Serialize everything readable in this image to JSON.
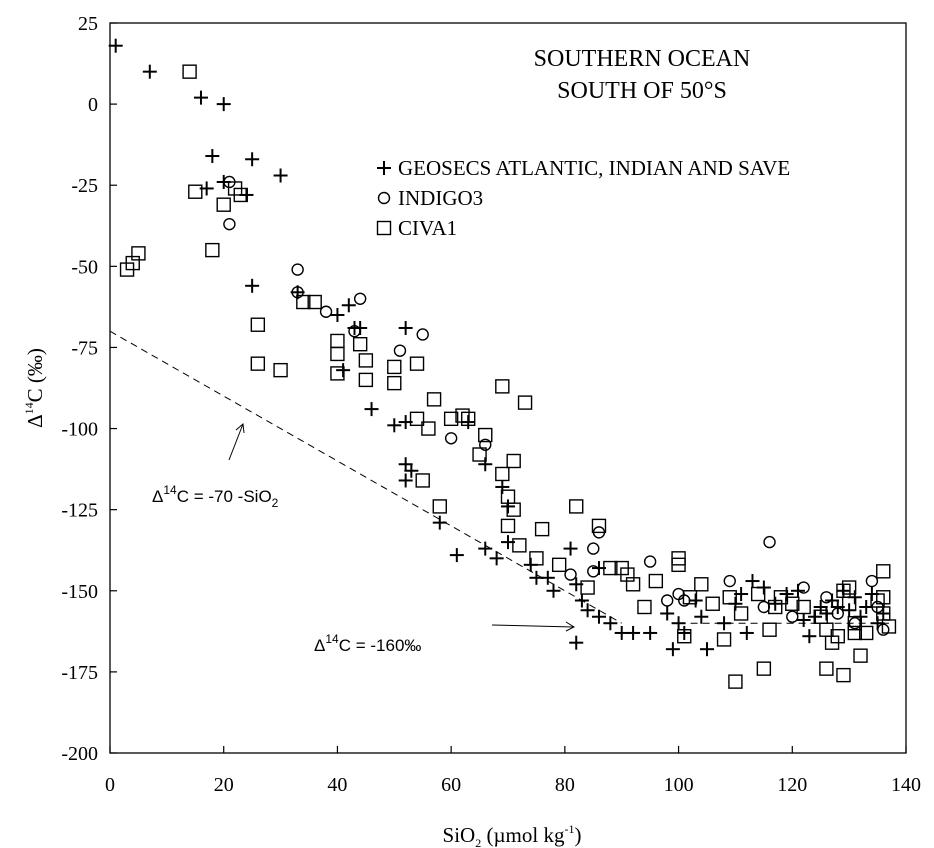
{
  "chart_data": {
    "type": "scatter",
    "title": [
      "SOUTHERN OCEAN",
      "SOUTH OF 50°S"
    ],
    "xlabel": {
      "main": "SiO",
      "sub": "2",
      "rest": " (µmol kg",
      "sup": "-1",
      "end": ")"
    },
    "ylabel": {
      "pre": "Δ",
      "sup": "14",
      "rest": "C (‰)"
    },
    "xlim": [
      0,
      140
    ],
    "ylim": [
      -200,
      25
    ],
    "xticks": [
      0,
      20,
      40,
      60,
      80,
      100,
      120,
      140
    ],
    "yticks": [
      25,
      0,
      -25,
      -50,
      -75,
      -100,
      -125,
      -150,
      -175,
      -200
    ],
    "legend_position": "top-right",
    "series": [
      {
        "name": "GEOSECS ATLANTIC, INDIAN AND SAVE",
        "marker": "plus",
        "points": [
          [
            1,
            18
          ],
          [
            7,
            10
          ],
          [
            16,
            2
          ],
          [
            20,
            0
          ],
          [
            18,
            -16
          ],
          [
            25,
            -17
          ],
          [
            17,
            -26
          ],
          [
            20,
            -24
          ],
          [
            24,
            -28
          ],
          [
            30,
            -22
          ],
          [
            25,
            -56
          ],
          [
            33,
            -58
          ],
          [
            40,
            -65
          ],
          [
            42,
            -62
          ],
          [
            44,
            -69
          ],
          [
            52,
            -69
          ],
          [
            43,
            -69
          ],
          [
            41,
            -82
          ],
          [
            46,
            -94
          ],
          [
            50,
            -99
          ],
          [
            52,
            -98
          ],
          [
            52,
            -111
          ],
          [
            53,
            -113
          ],
          [
            52,
            -116
          ],
          [
            58,
            -129
          ],
          [
            61,
            -139
          ],
          [
            63,
            -98
          ],
          [
            66,
            -111
          ],
          [
            69,
            -118
          ],
          [
            70,
            -124
          ],
          [
            70,
            -135
          ],
          [
            66,
            -137
          ],
          [
            68,
            -140
          ],
          [
            74,
            -142
          ],
          [
            75,
            -146
          ],
          [
            77,
            -146
          ],
          [
            78,
            -150
          ],
          [
            81,
            -137
          ],
          [
            82,
            -148
          ],
          [
            83,
            -153
          ],
          [
            84,
            -156
          ],
          [
            82,
            -166
          ],
          [
            86,
            -158
          ],
          [
            88,
            -160
          ],
          [
            86,
            -143
          ],
          [
            90,
            -163
          ],
          [
            92,
            -163
          ],
          [
            95,
            -163
          ],
          [
            98,
            -157
          ],
          [
            99,
            -168
          ],
          [
            100,
            -160
          ],
          [
            101,
            -163
          ],
          [
            103,
            -153
          ],
          [
            104,
            -158
          ],
          [
            105,
            -168
          ],
          [
            108,
            -160
          ],
          [
            110,
            -154
          ],
          [
            111,
            -151
          ],
          [
            112,
            -163
          ],
          [
            113,
            -147
          ],
          [
            115,
            -149
          ],
          [
            117,
            -154
          ],
          [
            119,
            -151
          ],
          [
            121,
            -150
          ],
          [
            122,
            -159
          ],
          [
            123,
            -164
          ],
          [
            124,
            -158
          ],
          [
            125,
            -155
          ],
          [
            126,
            -157
          ],
          [
            127,
            -153
          ],
          [
            128,
            -155
          ],
          [
            129,
            -150
          ],
          [
            130,
            -156
          ],
          [
            131,
            -152
          ],
          [
            132,
            -158
          ],
          [
            133,
            -155
          ],
          [
            134,
            -151
          ],
          [
            135,
            -160
          ],
          [
            136,
            -157
          ]
        ]
      },
      {
        "name": "INDIGO3",
        "marker": "circle",
        "points": [
          [
            21,
            -24
          ],
          [
            21,
            -37
          ],
          [
            33,
            -51
          ],
          [
            33,
            -58
          ],
          [
            38,
            -64
          ],
          [
            43,
            -70
          ],
          [
            44,
            -60
          ],
          [
            51,
            -76
          ],
          [
            55,
            -71
          ],
          [
            60,
            -103
          ],
          [
            66,
            -105
          ],
          [
            81,
            -145
          ],
          [
            85,
            -137
          ],
          [
            86,
            -132
          ],
          [
            85,
            -144
          ],
          [
            95,
            -141
          ],
          [
            98,
            -153
          ],
          [
            100,
            -151
          ],
          [
            101,
            -153
          ],
          [
            109,
            -147
          ],
          [
            115,
            -155
          ],
          [
            116,
            -135
          ],
          [
            120,
            -158
          ],
          [
            122,
            -149
          ],
          [
            126,
            -152
          ],
          [
            128,
            -157
          ],
          [
            131,
            -160
          ],
          [
            134,
            -147
          ],
          [
            135,
            -155
          ],
          [
            136,
            -162
          ]
        ]
      },
      {
        "name": "CIVA1",
        "marker": "square",
        "points": [
          [
            14,
            10
          ],
          [
            15,
            -27
          ],
          [
            20,
            -31
          ],
          [
            22,
            -26
          ],
          [
            23,
            -28
          ],
          [
            18,
            -45
          ],
          [
            3,
            -51
          ],
          [
            4,
            -49
          ],
          [
            5,
            -46
          ],
          [
            26,
            -68
          ],
          [
            26,
            -80
          ],
          [
            30,
            -82
          ],
          [
            34,
            -61
          ],
          [
            36,
            -61
          ],
          [
            40,
            -73
          ],
          [
            40,
            -77
          ],
          [
            40,
            -83
          ],
          [
            44,
            -74
          ],
          [
            45,
            -79
          ],
          [
            45,
            -85
          ],
          [
            50,
            -81
          ],
          [
            50,
            -86
          ],
          [
            54,
            -97
          ],
          [
            54,
            -80
          ],
          [
            56,
            -100
          ],
          [
            57,
            -91
          ],
          [
            55,
            -116
          ],
          [
            58,
            -124
          ],
          [
            60,
            -97
          ],
          [
            62,
            -96
          ],
          [
            63,
            -97
          ],
          [
            65,
            -108
          ],
          [
            66,
            -102
          ],
          [
            69,
            -87
          ],
          [
            71,
            -110
          ],
          [
            73,
            -92
          ],
          [
            69,
            -114
          ],
          [
            70,
            -121
          ],
          [
            71,
            -125
          ],
          [
            70,
            -130
          ],
          [
            72,
            -136
          ],
          [
            76,
            -131
          ],
          [
            75,
            -140
          ],
          [
            79,
            -142
          ],
          [
            82,
            -124
          ],
          [
            84,
            -149
          ],
          [
            86,
            -130
          ],
          [
            88,
            -143
          ],
          [
            90,
            -143
          ],
          [
            91,
            -145
          ],
          [
            92,
            -148
          ],
          [
            94,
            -155
          ],
          [
            96,
            -147
          ],
          [
            100,
            -140
          ],
          [
            100,
            -142
          ],
          [
            101,
            -164
          ],
          [
            102,
            -152
          ],
          [
            104,
            -148
          ],
          [
            106,
            -154
          ],
          [
            108,
            -165
          ],
          [
            109,
            -152
          ],
          [
            110,
            -178
          ],
          [
            111,
            -157
          ],
          [
            114,
            -151
          ],
          [
            115,
            -174
          ],
          [
            116,
            -162
          ],
          [
            117,
            -155
          ],
          [
            118,
            -152
          ],
          [
            120,
            -154
          ],
          [
            122,
            -155
          ],
          [
            125,
            -158
          ],
          [
            126,
            -174
          ],
          [
            126,
            -162
          ],
          [
            127,
            -166
          ],
          [
            128,
            -164
          ],
          [
            129,
            -176
          ],
          [
            129,
            -150
          ],
          [
            130,
            -149
          ],
          [
            130,
            -154
          ],
          [
            131,
            -160
          ],
          [
            131,
            -163
          ],
          [
            132,
            -170
          ],
          [
            133,
            -163
          ],
          [
            135,
            -153
          ],
          [
            136,
            -152
          ],
          [
            136,
            -144
          ],
          [
            136,
            -157
          ],
          [
            137,
            -161
          ]
        ]
      }
    ],
    "annotations": [
      {
        "pre": "Δ",
        "sup": "14",
        "main": "C = -70 -SiO",
        "sub": "2"
      },
      {
        "pre": "Δ",
        "sup": "14",
        "main": "C = -160‰"
      }
    ],
    "reference_lines": [
      {
        "equation": "y = -70 - x",
        "style": "dashed"
      },
      {
        "equation": "y = -160",
        "style": "dashed",
        "x_range": [
          100,
          137
        ]
      }
    ]
  }
}
